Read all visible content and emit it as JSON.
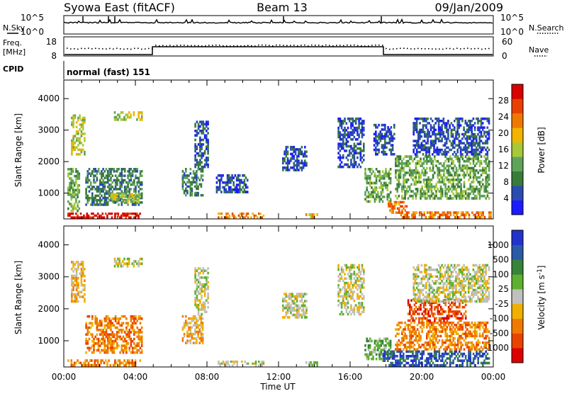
{
  "header": {
    "station": "Syowa East (fitACF)",
    "beam": "Beam 13",
    "date": "09/Jan/2009"
  },
  "noise_panel": {
    "left_label": "N.Sky",
    "right_label": "N.Search",
    "left_ticks": [
      "10^5",
      "10^0"
    ],
    "right_ticks": [
      "10^5",
      "10^0"
    ]
  },
  "freq_panel": {
    "left_label_line1": "Freq.",
    "left_label_line2": "[MHz]",
    "right_label": "Nave",
    "left_ticks": [
      "18",
      "8"
    ],
    "right_ticks": [
      "60",
      "0"
    ]
  },
  "cpid": {
    "label": "CPID",
    "value": "normal (fast) 151"
  },
  "colors": {
    "power": [
      "#1c1cff",
      "#2a4cb0",
      "#3a7a3a",
      "#5fa35a",
      "#a8c83a",
      "#f2b400",
      "#f07800",
      "#e84000",
      "#d80000"
    ],
    "velocity": [
      "#2233cc",
      "#2a5aa8",
      "#38833a",
      "#5fb030",
      "#c0c0bc",
      "#f0b000",
      "#f07a00",
      "#e84400",
      "#dd0000"
    ]
  },
  "chart_data": [
    {
      "type": "heatmap",
      "name": "power",
      "xlabel": "Time UT",
      "ylabel": "Slant Range [km]",
      "x_ticks": [
        "00:00",
        "04:00",
        "08:00",
        "12:00",
        "16:00",
        "20:00",
        "00:00"
      ],
      "y_ticks": [
        1000,
        2000,
        3000,
        4000
      ],
      "x_range_hours": [
        0,
        24
      ],
      "y_range_km": [
        180,
        4590
      ],
      "colorbar": {
        "label": "Power [dB]",
        "ticks": [
          4,
          8,
          12,
          16,
          20,
          24,
          28
        ],
        "range": [
          0,
          32
        ]
      },
      "regions": [
        {
          "t0": 0.2,
          "t1": 4.3,
          "r0": 200,
          "r1": 380,
          "bin": 8
        },
        {
          "t0": 0.2,
          "t1": 0.9,
          "r0": 400,
          "r1": 1800,
          "bin": 3
        },
        {
          "t0": 0.4,
          "t1": 1.2,
          "r0": 2200,
          "r1": 3500,
          "bin": 4
        },
        {
          "t0": 1.2,
          "t1": 4.4,
          "r0": 600,
          "r1": 1800,
          "bin": 2
        },
        {
          "t0": 2.6,
          "t1": 4.3,
          "r0": 700,
          "r1": 1000,
          "bin": 4
        },
        {
          "t0": 2.8,
          "t1": 4.4,
          "r0": 3300,
          "r1": 3600,
          "bin": 4
        },
        {
          "t0": 6.6,
          "t1": 7.8,
          "r0": 900,
          "r1": 1800,
          "bin": 2
        },
        {
          "t0": 7.3,
          "t1": 8.1,
          "r0": 1800,
          "r1": 3300,
          "bin": 1
        },
        {
          "t0": 8.5,
          "t1": 10.3,
          "r0": 1000,
          "r1": 1600,
          "bin": 1
        },
        {
          "t0": 8.6,
          "t1": 11.2,
          "r0": 200,
          "r1": 380,
          "bin": 6
        },
        {
          "t0": 12.2,
          "t1": 13.6,
          "r0": 1700,
          "r1": 2500,
          "bin": 1
        },
        {
          "t0": 13.5,
          "t1": 14.2,
          "r0": 200,
          "r1": 360,
          "bin": 5
        },
        {
          "t0": 15.3,
          "t1": 16.8,
          "r0": 1800,
          "r1": 3400,
          "bin": 1
        },
        {
          "t0": 16.8,
          "t1": 18.3,
          "r0": 700,
          "r1": 1800,
          "bin": 3
        },
        {
          "t0": 17.3,
          "t1": 18.5,
          "r0": 2200,
          "r1": 3200,
          "bin": 1
        },
        {
          "t0": 18.1,
          "t1": 19.2,
          "r0": 350,
          "r1": 750,
          "bin": 6
        },
        {
          "t0": 18.8,
          "t1": 23.9,
          "r0": 200,
          "r1": 420,
          "bin": 6
        },
        {
          "t0": 18.5,
          "t1": 23.8,
          "r0": 800,
          "r1": 2200,
          "bin": 3
        },
        {
          "t0": 19.5,
          "t1": 23.8,
          "r0": 2200,
          "r1": 3400,
          "bin": 1
        }
      ]
    },
    {
      "type": "heatmap",
      "name": "velocity",
      "xlabel": "Time UT",
      "ylabel": "Slant Range [km]",
      "x_ticks": [
        "00:00",
        "04:00",
        "08:00",
        "12:00",
        "16:00",
        "20:00",
        "00:00"
      ],
      "y_ticks": [
        1000,
        2000,
        3000,
        4000
      ],
      "x_range_hours": [
        0,
        24
      ],
      "y_range_km": [
        180,
        4590
      ],
      "colorbar": {
        "label": "Velocity [m s^-1]",
        "ticks": [
          "1000",
          "500",
          "100",
          "25",
          "-25",
          "-100",
          "-500",
          "-1000"
        ]
      },
      "regions": [
        {
          "t0": 0.2,
          "t1": 4.3,
          "r0": 200,
          "r1": 420,
          "bin": 6
        },
        {
          "t0": 1.2,
          "t1": 4.4,
          "r0": 600,
          "r1": 1800,
          "bin": 6
        },
        {
          "t0": 0.4,
          "t1": 1.2,
          "r0": 2200,
          "r1": 3500,
          "bin": 5
        },
        {
          "t0": 2.8,
          "t1": 4.4,
          "r0": 3300,
          "r1": 3600,
          "bin": 4
        },
        {
          "t0": 6.6,
          "t1": 7.8,
          "r0": 900,
          "r1": 1800,
          "bin": 5
        },
        {
          "t0": 7.3,
          "t1": 8.1,
          "r0": 1800,
          "r1": 3300,
          "bin": 4
        },
        {
          "t0": 8.6,
          "t1": 11.2,
          "r0": 200,
          "r1": 380,
          "bin": 4
        },
        {
          "t0": 12.2,
          "t1": 13.6,
          "r0": 1700,
          "r1": 2500,
          "bin": 4
        },
        {
          "t0": 13.5,
          "t1": 14.2,
          "r0": 200,
          "r1": 360,
          "bin": 3
        },
        {
          "t0": 15.3,
          "t1": 16.8,
          "r0": 1800,
          "r1": 3400,
          "bin": 4
        },
        {
          "t0": 16.8,
          "t1": 18.3,
          "r0": 400,
          "r1": 1100,
          "bin": 3
        },
        {
          "t0": 17.8,
          "t1": 23.8,
          "r0": 200,
          "r1": 700,
          "bin": 1
        },
        {
          "t0": 18.5,
          "t1": 23.8,
          "r0": 700,
          "r1": 1600,
          "bin": 6
        },
        {
          "t0": 19.2,
          "t1": 22.5,
          "r0": 1600,
          "r1": 2300,
          "bin": 7
        },
        {
          "t0": 19.5,
          "t1": 23.8,
          "r0": 2200,
          "r1": 3400,
          "bin": 4
        }
      ]
    }
  ]
}
